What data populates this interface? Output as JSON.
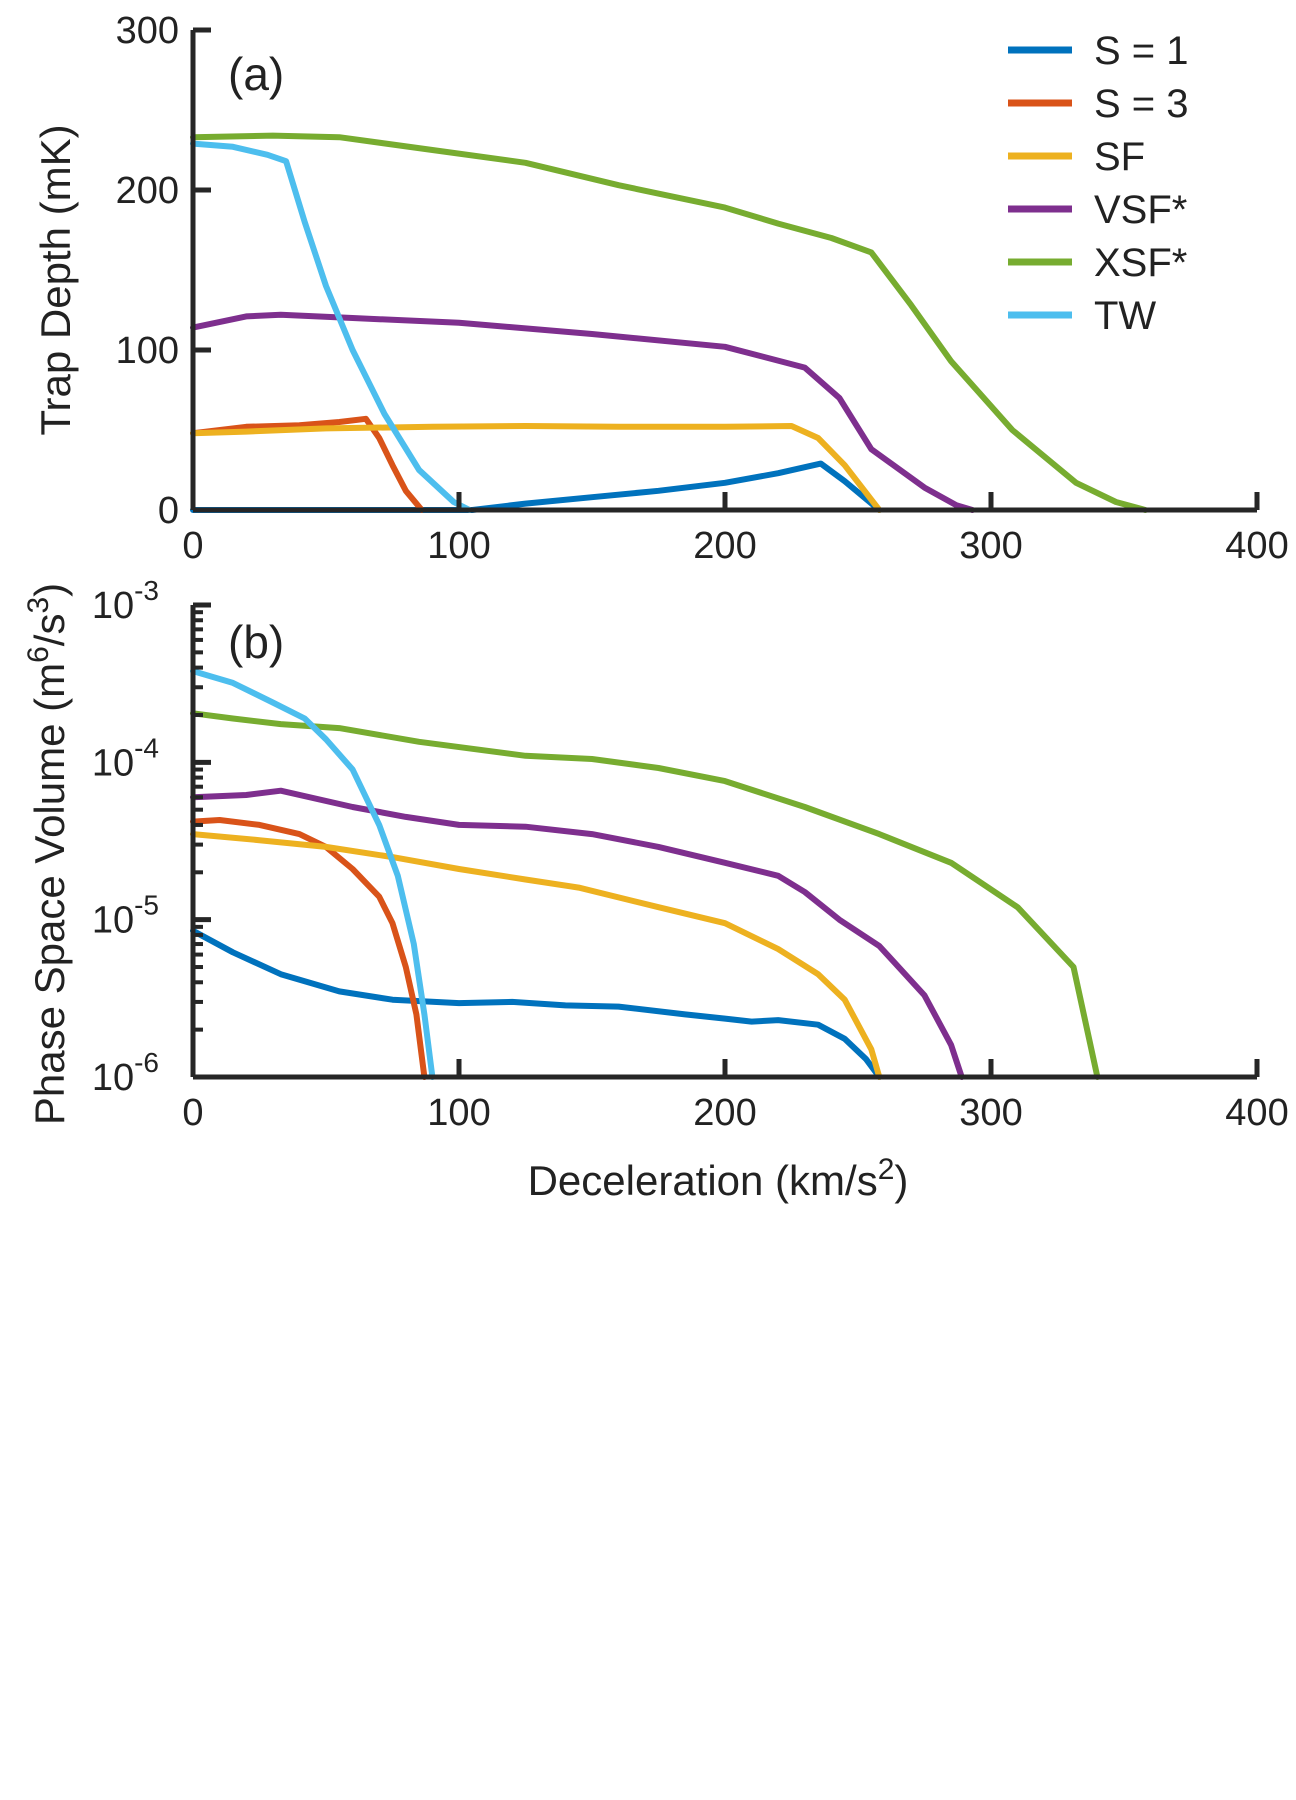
{
  "legend": {
    "placement": "top-right",
    "entries": [
      {
        "label": "S = 1",
        "color": "#0072BD"
      },
      {
        "label": "S = 3",
        "color": "#D95319"
      },
      {
        "label": "SF",
        "color": "#EDB120"
      },
      {
        "label": "VSF*",
        "color": "#7E2F8E"
      },
      {
        "label": "XSF*",
        "color": "#77AC30"
      },
      {
        "label": "TW",
        "color": "#4DBEEE"
      }
    ]
  },
  "chart_data": [
    {
      "type": "line",
      "panel_label": "(a)",
      "xlabel": "",
      "ylabel": "Trap Depth (mK)",
      "xlim": [
        0,
        400
      ],
      "ylim": [
        0,
        300
      ],
      "xticks": [
        0,
        100,
        200,
        300,
        400
      ],
      "yticks": [
        0,
        100,
        200,
        300
      ],
      "xtick_labels": [
        "0",
        "100",
        "200",
        "300",
        "400"
      ],
      "ytick_labels": [
        "0",
        "100",
        "200",
        "300"
      ],
      "grid": false,
      "series": [
        {
          "name": "S = 1",
          "color": "#0072BD",
          "points": [
            [
              0,
              0
            ],
            [
              45,
              0
            ],
            [
              90,
              0
            ],
            [
              105,
              0
            ],
            [
              125,
              4
            ],
            [
              150,
              8
            ],
            [
              175,
              12
            ],
            [
              200,
              17
            ],
            [
              220,
              23
            ],
            [
              236,
              29
            ],
            [
              245,
              18
            ],
            [
              258,
              0
            ]
          ]
        },
        {
          "name": "S = 3",
          "color": "#D95319",
          "points": [
            [
              0,
              48
            ],
            [
              20,
              52
            ],
            [
              40,
              53
            ],
            [
              55,
              55
            ],
            [
              65,
              57
            ],
            [
              70,
              45
            ],
            [
              75,
              28
            ],
            [
              80,
              12
            ],
            [
              86,
              0
            ]
          ]
        },
        {
          "name": "SF",
          "color": "#EDB120",
          "points": [
            [
              0,
              48
            ],
            [
              20,
              49
            ],
            [
              50,
              51
            ],
            [
              90,
              52
            ],
            [
              125,
              52.5
            ],
            [
              160,
              52
            ],
            [
              200,
              52
            ],
            [
              225,
              52.5
            ],
            [
              235,
              45
            ],
            [
              245,
              28
            ],
            [
              258,
              0
            ]
          ]
        },
        {
          "name": "VSF*",
          "color": "#7E2F8E",
          "points": [
            [
              0,
              114
            ],
            [
              20,
              121
            ],
            [
              33,
              122
            ],
            [
              60,
              120
            ],
            [
              100,
              117
            ],
            [
              150,
              110
            ],
            [
              200,
              102
            ],
            [
              230,
              89
            ],
            [
              243,
              70
            ],
            [
              255,
              38
            ],
            [
              275,
              14
            ],
            [
              287,
              3
            ],
            [
              293,
              0
            ]
          ]
        },
        {
          "name": "XSF*",
          "color": "#77AC30",
          "points": [
            [
              0,
              233
            ],
            [
              30,
              234
            ],
            [
              55,
              233
            ],
            [
              90,
              225
            ],
            [
              125,
              217
            ],
            [
              160,
              203
            ],
            [
              200,
              189
            ],
            [
              220,
              179
            ],
            [
              240,
              170
            ],
            [
              255,
              161
            ],
            [
              270,
              128
            ],
            [
              285,
              93
            ],
            [
              308,
              50
            ],
            [
              332,
              17
            ],
            [
              347,
              5
            ],
            [
              358,
              0
            ]
          ]
        },
        {
          "name": "TW",
          "color": "#4DBEEE",
          "points": [
            [
              0,
              229
            ],
            [
              15,
              227
            ],
            [
              28,
              222
            ],
            [
              35,
              218
            ],
            [
              42,
              180
            ],
            [
              50,
              140
            ],
            [
              60,
              100
            ],
            [
              72,
              60
            ],
            [
              85,
              25
            ],
            [
              98,
              5
            ],
            [
              104,
              0
            ]
          ]
        }
      ]
    },
    {
      "type": "line",
      "panel_label": "(b)",
      "xlabel": "Deceleration (km/s",
      "xlabel_sup": "2",
      "xlabel_tail": ")",
      "ylabel": "Phase Space Volume (m",
      "ylabel_sup1": "6",
      "ylabel_mid": "/s",
      "ylabel_sup2": "3",
      "ylabel_tail": ")",
      "xlim": [
        0,
        400
      ],
      "ylim": [
        1e-06,
        0.001
      ],
      "yscale": "log",
      "xticks": [
        0,
        100,
        200,
        300,
        400
      ],
      "xtick_labels": [
        "0",
        "100",
        "200",
        "300",
        "400"
      ],
      "yticks": [
        1e-06,
        1e-05,
        0.0001,
        0.001
      ],
      "ytick_bases": [
        "10",
        "10",
        "10",
        "10"
      ],
      "ytick_exps": [
        "-6",
        "-5",
        "-4",
        "-3"
      ],
      "grid": false,
      "series": [
        {
          "name": "S = 1",
          "color": "#0072BD",
          "points": [
            [
              0,
              8.5e-06
            ],
            [
              15,
              6.2e-06
            ],
            [
              33,
              4.5e-06
            ],
            [
              55,
              3.5e-06
            ],
            [
              75,
              3.1e-06
            ],
            [
              100,
              2.95e-06
            ],
            [
              120,
              3e-06
            ],
            [
              140,
              2.85e-06
            ],
            [
              160,
              2.8e-06
            ],
            [
              185,
              2.5e-06
            ],
            [
              200,
              2.35e-06
            ],
            [
              210,
              2.25e-06
            ],
            [
              220,
              2.3e-06
            ],
            [
              235,
              2.15e-06
            ],
            [
              245,
              1.75e-06
            ],
            [
              253,
              1.3e-06
            ],
            [
              258,
              1e-06
            ]
          ]
        },
        {
          "name": "S = 3",
          "color": "#D95319",
          "points": [
            [
              0,
              4.2e-05
            ],
            [
              10,
              4.3e-05
            ],
            [
              25,
              4e-05
            ],
            [
              40,
              3.5e-05
            ],
            [
              50,
              2.9e-05
            ],
            [
              60,
              2.1e-05
            ],
            [
              70,
              1.4e-05
            ],
            [
              75,
              9.5e-06
            ],
            [
              80,
              5e-06
            ],
            [
              84,
              2.5e-06
            ],
            [
              87,
              1e-06
            ]
          ]
        },
        {
          "name": "SF",
          "color": "#EDB120",
          "points": [
            [
              0,
              3.5e-05
            ],
            [
              25,
              3.2e-05
            ],
            [
              50,
              2.9e-05
            ],
            [
              75,
              2.5e-05
            ],
            [
              100,
              2.1e-05
            ],
            [
              125,
              1.8e-05
            ],
            [
              145,
              1.6e-05
            ],
            [
              175,
              1.2e-05
            ],
            [
              200,
              9.5e-06
            ],
            [
              220,
              6.5e-06
            ],
            [
              235,
              4.5e-06
            ],
            [
              245,
              3.1e-06
            ],
            [
              255,
              1.5e-06
            ],
            [
              258,
              1e-06
            ]
          ]
        },
        {
          "name": "VSF*",
          "color": "#7E2F8E",
          "points": [
            [
              0,
              6e-05
            ],
            [
              20,
              6.2e-05
            ],
            [
              33,
              6.6e-05
            ],
            [
              60,
              5.2e-05
            ],
            [
              80,
              4.5e-05
            ],
            [
              100,
              4e-05
            ],
            [
              125,
              3.9e-05
            ],
            [
              150,
              3.5e-05
            ],
            [
              175,
              2.9e-05
            ],
            [
              200,
              2.3e-05
            ],
            [
              220,
              1.9e-05
            ],
            [
              230,
              1.5e-05
            ],
            [
              243,
              1e-05
            ],
            [
              258,
              6.8e-06
            ],
            [
              275,
              3.3e-06
            ],
            [
              285,
              1.6e-06
            ],
            [
              289,
              1e-06
            ]
          ]
        },
        {
          "name": "XSF*",
          "color": "#77AC30",
          "points": [
            [
              0,
              0.000205
            ],
            [
              15,
              0.00019
            ],
            [
              33,
              0.000175
            ],
            [
              55,
              0.000165
            ],
            [
              85,
              0.000135
            ],
            [
              125,
              0.00011
            ],
            [
              150,
              0.000105
            ],
            [
              175,
              9.2e-05
            ],
            [
              200,
              7.6e-05
            ],
            [
              230,
              5.2e-05
            ],
            [
              258,
              3.5e-05
            ],
            [
              285,
              2.3e-05
            ],
            [
              310,
              1.2e-05
            ],
            [
              331,
              5e-06
            ],
            [
              340,
              1e-06
            ]
          ]
        },
        {
          "name": "TW",
          "color": "#4DBEEE",
          "points": [
            [
              0,
              0.00038
            ],
            [
              15,
              0.00032
            ],
            [
              30,
              0.00024
            ],
            [
              42,
              0.00019
            ],
            [
              50,
              0.00014
            ],
            [
              60,
              9e-05
            ],
            [
              70,
              4e-05
            ],
            [
              77,
              1.9e-05
            ],
            [
              83,
              7e-06
            ],
            [
              87,
              2.5e-06
            ],
            [
              90,
              1e-06
            ]
          ]
        }
      ]
    }
  ]
}
